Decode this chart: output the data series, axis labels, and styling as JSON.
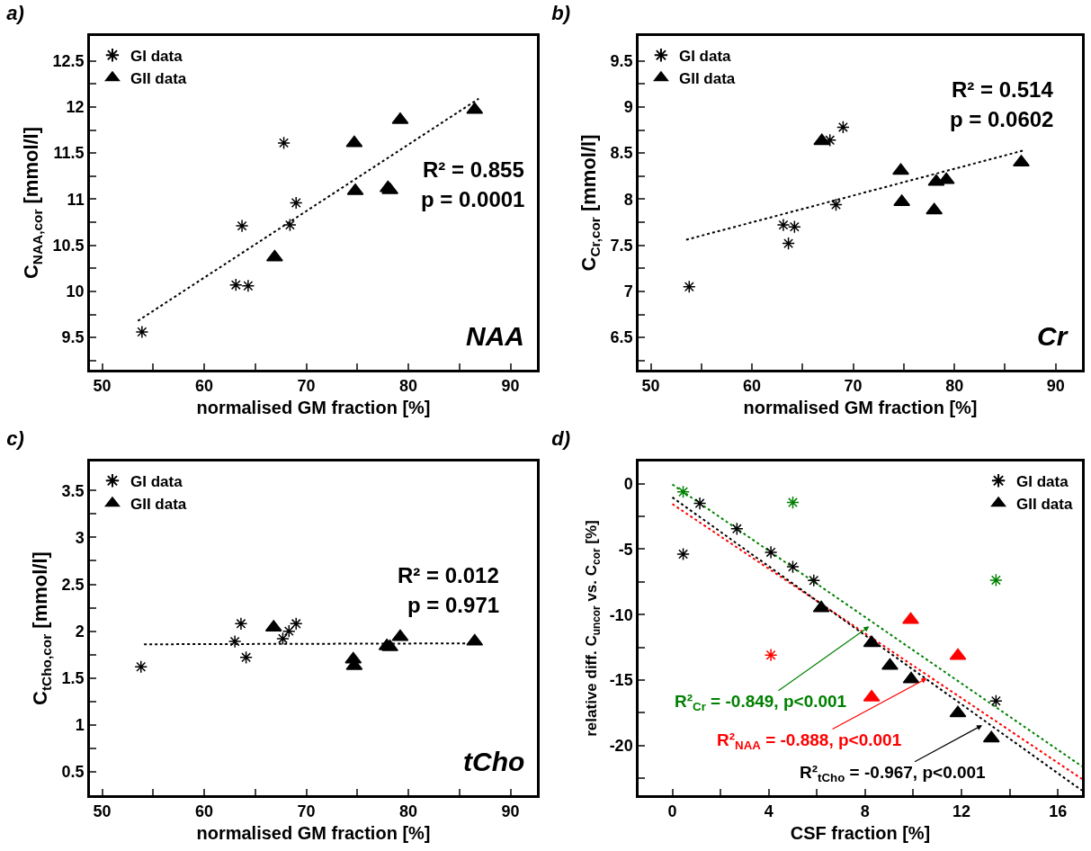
{
  "chart_data": [
    {
      "type": "scatter",
      "title": "a)",
      "xlabel": "normalised GM fraction [%]",
      "ylabel": "C$_{NAA,cor}$ [mmol/l]",
      "legend": "top left",
      "xlim": [
        48.8,
        92.6
      ],
      "xticks": [
        50,
        {
          "value": 55,
          "label": null
        },
        60,
        {
          "value": 65,
          "label": null
        },
        70,
        {
          "value": 75,
          "label": null
        },
        80,
        {
          "value": 85,
          "label": null
        },
        90
      ],
      "ylim": [
        9.15,
        12.77
      ],
      "yticks": [
        {
          "value": 9.25,
          "label": null
        },
        9.5,
        {
          "value": 9.75,
          "label": null
        },
        10.0,
        {
          "value": 10.25,
          "label": null
        },
        10.5,
        {
          "value": 10.75,
          "label": null
        },
        11.0,
        {
          "value": 11.25,
          "label": null
        },
        11.5,
        {
          "value": 11.75,
          "label": null
        },
        12.0,
        {
          "value": 12.25,
          "label": null
        },
        12.5
      ],
      "annotations": [
        "R² = 0.855",
        "p = 0.0001",
        "NAA"
      ],
      "series": [
        {
          "type": "line",
          "color": "#000000",
          "marker": "none",
          "line_style": "dotted",
          "x": [
            53.5,
            86.9
          ],
          "values": [
            9.68,
            12.09
          ]
        },
        {
          "name": "GI data",
          "color": "#000000",
          "marker": "cross",
          "x": [
            53.9,
            67.8,
            69.0,
            63.7,
            68.4,
            63.1,
            64.3
          ],
          "values": [
            9.56,
            11.61,
            10.96,
            10.71,
            10.72,
            10.07,
            10.06
          ]
        },
        {
          "name": "GII data",
          "color": "#000000",
          "marker": "triangle",
          "x": [
            74.7,
            79.2,
            86.5,
            74.8,
            78.0,
            78.2,
            66.9
          ],
          "values": [
            11.61,
            11.86,
            11.97,
            11.09,
            11.12,
            11.1,
            10.37
          ]
        }
      ]
    },
    {
      "type": "scatter",
      "title": "b)",
      "xlabel": "normalised GM fraction [%]",
      "ylabel": "C$_{Cr,cor}$ [mmol/l]",
      "legend": "top left",
      "xlim": [
        48.8,
        92.6
      ],
      "xticks": [
        50,
        {
          "value": 55,
          "label": null
        },
        60,
        {
          "value": 65,
          "label": null
        },
        70,
        {
          "value": 75,
          "label": null
        },
        80,
        {
          "value": 85,
          "label": null
        },
        90
      ],
      "ylim": [
        6.15,
        9.77
      ],
      "yticks": [
        {
          "value": 6.25,
          "label": null
        },
        6.5,
        {
          "value": 6.75,
          "label": null
        },
        7.0,
        {
          "value": 7.25,
          "label": null
        },
        7.5,
        {
          "value": 7.75,
          "label": null
        },
        8.0,
        {
          "value": 8.25,
          "label": null
        },
        8.5,
        {
          "value": 8.75,
          "label": null
        },
        9.0,
        {
          "value": 9.25,
          "label": null
        },
        9.5
      ],
      "annotations": [
        "R² = 0.514",
        "p = 0.0602",
        "Cr"
      ],
      "series": [
        {
          "type": "line",
          "color": "#000000",
          "marker": "none",
          "line_style": "dotted",
          "x": [
            53.5,
            86.9
          ],
          "values": [
            7.56,
            8.53
          ]
        },
        {
          "name": "GI data",
          "color": "#000000",
          "marker": "cross",
          "x": [
            53.8,
            67.7,
            69.0,
            68.3,
            63.1,
            64.2,
            63.6
          ],
          "values": [
            7.05,
            8.64,
            8.78,
            7.94,
            7.72,
            7.7,
            7.52
          ]
        },
        {
          "name": "GII data",
          "color": "#000000",
          "marker": "triangle",
          "x": [
            66.9,
            74.7,
            74.8,
            78.2,
            79.2,
            78.0,
            86.6
          ],
          "values": [
            8.63,
            8.31,
            7.97,
            8.19,
            8.21,
            7.88,
            8.4
          ]
        }
      ]
    },
    {
      "type": "scatter",
      "title": "c)",
      "xlabel": "normalised GM fraction [%]",
      "ylabel": "C$_{tCho,cor}$ [mmol/l]",
      "legend": "top left",
      "xlim": [
        48.8,
        92.6
      ],
      "xticks": [
        50,
        {
          "value": 55,
          "label": null
        },
        60,
        {
          "value": 65,
          "label": null
        },
        70,
        {
          "value": 75,
          "label": null
        },
        80,
        {
          "value": 85,
          "label": null
        },
        90
      ],
      "ylim": [
        0.25,
        3.81
      ],
      "yticks": [
        {
          "value": 0.25,
          "label": null
        },
        0.5,
        {
          "value": 0.75,
          "label": null
        },
        1.0,
        {
          "value": 1.25,
          "label": null
        },
        1.5,
        {
          "value": 1.75,
          "label": null
        },
        2.0,
        {
          "value": 2.25,
          "label": null
        },
        2.5,
        {
          "value": 2.75,
          "label": null
        },
        3.0,
        {
          "value": 3.25,
          "label": null
        },
        3.5
      ],
      "annotations": [
        "R² = 0.012",
        "p = 0.971",
        "tCho"
      ],
      "series": [
        {
          "type": "line",
          "color": "#000000",
          "marker": "none",
          "line_style": "dotted",
          "x": [
            54.1,
            86.9
          ],
          "values": [
            1.86,
            1.87
          ]
        },
        {
          "name": "GI data",
          "color": "#000000",
          "marker": "cross",
          "x": [
            53.8,
            63.6,
            63.0,
            64.1,
            67.7,
            68.3,
            69.0
          ],
          "values": [
            1.62,
            2.08,
            1.89,
            1.72,
            1.92,
            2.0,
            2.08
          ]
        },
        {
          "name": "GII data",
          "color": "#000000",
          "marker": "triangle",
          "x": [
            66.8,
            79.2,
            77.9,
            78.2,
            86.5,
            74.6,
            74.7
          ],
          "values": [
            2.04,
            1.94,
            1.84,
            1.83,
            1.89,
            1.7,
            1.63
          ]
        }
      ]
    },
    {
      "type": "scatter",
      "title": "d)",
      "xlabel": "CSF fraction [%]",
      "ylabel": "relative diff. C$_{uncor}$ vs. C$_{cor}$ [%]",
      "legend": "top right",
      "xlim": [
        -1.4,
        17.0
      ],
      "xticks": [
        0,
        {
          "value": 2,
          "label": null
        },
        4,
        {
          "value": 6,
          "label": null
        },
        8,
        {
          "value": 10,
          "label": null
        },
        12,
        {
          "value": 14,
          "label": null
        },
        16
      ],
      "ylim": [
        -23.8,
        1.7
      ],
      "yticks": [
        {
          "value": -22.5,
          "label": null
        },
        -20,
        {
          "value": -17.5,
          "label": null
        },
        -15,
        {
          "value": -12.5,
          "label": null
        },
        -10,
        {
          "value": -7.5,
          "label": null
        },
        -5,
        {
          "value": -2.5,
          "label": null
        },
        0
      ],
      "annotations": [
        {
          "text": "R²$_{Cr}$ = -0.849, p<0.001",
          "x": 8.17,
          "y": -10.9
        },
        {
          "text": "R²$_{NAA}$ = -0.888, p<0.001",
          "x": 10.56,
          "y": -14.87
        },
        {
          "text": "R²$_{tCho}$ = -0.967, p<0.001",
          "x": 12.86,
          "y": -18.45
        }
      ],
      "series": [
        {
          "type": "line",
          "color": "#008000",
          "marker": "none",
          "line_style": "dotted",
          "x": [
            0,
            17.0
          ],
          "values": [
            -0.05,
            -21.6
          ]
        },
        {
          "type": "line",
          "color": "#ff0000",
          "marker": "none",
          "line_style": "dotted",
          "x": [
            0,
            17.0
          ],
          "values": [
            -1.55,
            -22.56
          ]
        },
        {
          "type": "line",
          "color": "#000000",
          "marker": "none",
          "line_style": "dotted",
          "x": [
            0,
            17.0
          ],
          "values": [
            -1.04,
            -23.44
          ]
        },
        {
          "color": "#008000",
          "marker": "cross",
          "x": [
            0.45,
            5.0,
            13.43
          ],
          "values": [
            -0.62,
            -1.43,
            -7.37
          ]
        },
        {
          "color": "#ff0000",
          "marker": "cross",
          "x": [
            4.09
          ],
          "values": [
            -13.09
          ]
        },
        {
          "color": "#ff0000",
          "marker": "triangle",
          "x": [
            9.89,
            11.85,
            8.27
          ],
          "values": [
            -10.39,
            -13.14,
            -16.33
          ]
        },
        {
          "name": "GI data",
          "color": "#000000",
          "marker": "cross",
          "x": [
            0.45,
            1.14,
            2.68,
            4.09,
            5.0,
            5.87,
            13.43
          ],
          "values": [
            -5.38,
            -1.5,
            -3.44,
            -5.24,
            -6.35,
            -7.39,
            -16.6
          ]
        },
        {
          "name": "GII data",
          "color": "#000000",
          "marker": "triangle",
          "x": [
            6.18,
            8.27,
            9.03,
            9.91,
            11.85,
            13.24
          ],
          "values": [
            -9.51,
            -12.17,
            -13.9,
            -14.94,
            -17.53,
            -19.45
          ]
        }
      ]
    }
  ]
}
